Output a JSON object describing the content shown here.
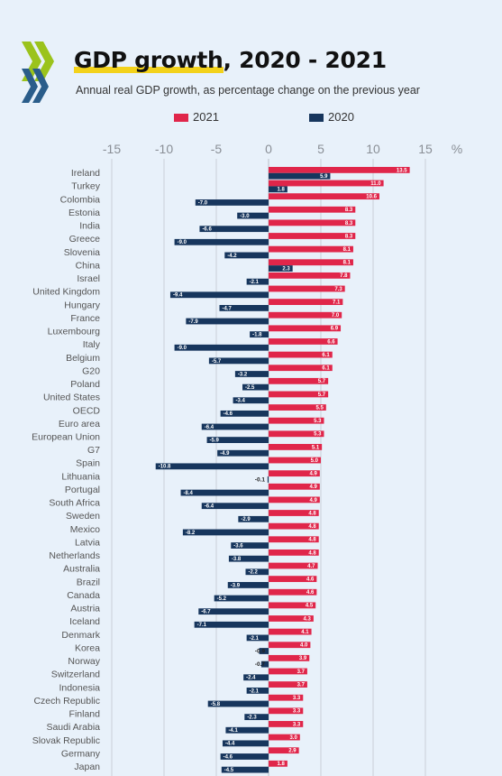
{
  "header": {
    "title_main": "GDP growth",
    "title_rest": ", 2020 - 2021",
    "subtitle": "Annual real GDP growth, as percentage change on the previous year"
  },
  "colors": {
    "series_2021": "#e0264a",
    "series_2020": "#17365d",
    "grid": "#c2c8d0",
    "label": "#555555"
  },
  "logo": {
    "colors": [
      "#9bc31c",
      "#2a5d8a"
    ]
  },
  "chart_data": {
    "type": "bar",
    "orientation": "horizontal",
    "title": "GDP growth, 2020 - 2021",
    "subtitle": "Annual real GDP growth, as percentage change on the previous year",
    "xlim": [
      -15,
      15
    ],
    "xticks": [
      -15,
      -10,
      -5,
      0,
      5,
      10,
      15
    ],
    "xunit": "%",
    "grid": true,
    "legend": "top",
    "categories": [
      "Ireland",
      "Turkey",
      "Colombia",
      "Estonia",
      "India",
      "Greece",
      "Slovenia",
      "China",
      "Israel",
      "United Kingdom",
      "Hungary",
      "France",
      "Luxembourg",
      "Italy",
      "Belgium",
      "G20",
      "Poland",
      "United States",
      "OECD",
      "Euro area",
      "European Union",
      "G7",
      "Spain",
      "Lithuania",
      "Portugal",
      "South Africa",
      "Sweden",
      "Mexico",
      "Latvia",
      "Netherlands",
      "Australia",
      "Brazil",
      "Canada",
      "Austria",
      "Iceland",
      "Denmark",
      "Korea",
      "Norway",
      "Switzerland",
      "Indonesia",
      "Czech Republic",
      "Finland",
      "Saudi Arabia",
      "Slovak Republic",
      "Germany",
      "Japan"
    ],
    "series": [
      {
        "name": "2021",
        "values": [
          13.5,
          11.0,
          10.6,
          8.3,
          8.3,
          8.3,
          8.1,
          8.1,
          7.8,
          7.3,
          7.1,
          7.0,
          6.9,
          6.6,
          6.1,
          6.1,
          5.7,
          5.7,
          5.5,
          5.3,
          5.3,
          5.1,
          5.0,
          4.9,
          4.9,
          4.9,
          4.8,
          4.8,
          4.8,
          4.8,
          4.7,
          4.6,
          4.6,
          4.5,
          4.3,
          4.1,
          4.0,
          3.9,
          3.7,
          3.7,
          3.3,
          3.3,
          3.3,
          3.0,
          2.9,
          1.8
        ]
      },
      {
        "name": "2020",
        "values": [
          5.9,
          1.8,
          -7.0,
          -3.0,
          -6.6,
          -9.0,
          -4.2,
          2.3,
          -2.1,
          -9.4,
          -4.7,
          -7.9,
          -1.8,
          -9.0,
          -5.7,
          -3.2,
          -2.5,
          -3.4,
          -4.6,
          -6.4,
          -5.9,
          -4.9,
          -10.8,
          -0.1,
          -8.4,
          -6.4,
          -2.9,
          -8.2,
          -3.6,
          -3.8,
          -2.2,
          -3.9,
          -5.2,
          -6.7,
          -7.1,
          -2.1,
          -0.9,
          -0.7,
          -2.4,
          -2.1,
          -5.8,
          -2.3,
          -4.1,
          -4.4,
          -4.6,
          -4.5
        ]
      }
    ]
  }
}
